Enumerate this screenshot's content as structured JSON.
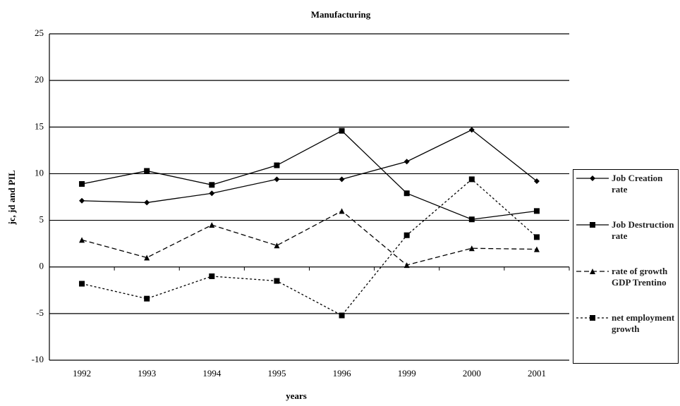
{
  "chart_data": {
    "type": "line",
    "title": "Manufacturing",
    "x_label": "years",
    "y_label": "jc, jd and PIL",
    "categories": [
      "1992",
      "1993",
      "1994",
      "1995",
      "1996",
      "1999",
      "2000",
      "2001"
    ],
    "series": [
      {
        "name": "Job Creation rate",
        "color": "#000000",
        "marker": "diamond",
        "dash": "none",
        "values": [
          7.1,
          6.9,
          7.9,
          9.4,
          9.4,
          11.3,
          14.7,
          9.2
        ]
      },
      {
        "name": "Job Destruction rate",
        "color": "#000000",
        "marker": "square",
        "dash": "none",
        "values": [
          8.9,
          10.3,
          8.8,
          10.9,
          14.6,
          7.9,
          5.1,
          6.0
        ]
      },
      {
        "name": "rate of growth GDP Trentino",
        "color": "#000000",
        "marker": "triangle",
        "dash": "7,4",
        "values": [
          2.9,
          1.0,
          4.5,
          2.3,
          6.0,
          0.2,
          2.0,
          1.9
        ]
      },
      {
        "name": "net employment growth",
        "color": "#000000",
        "marker": "square",
        "dash": "3,3",
        "values": [
          -1.8,
          -3.4,
          -1.0,
          -1.5,
          -5.2,
          3.4,
          9.4,
          3.2
        ]
      }
    ],
    "ylim": [
      -10,
      25
    ],
    "yticks": [
      -10,
      -5,
      0,
      5,
      10,
      15,
      20,
      25
    ],
    "grid": true,
    "legend": "right"
  }
}
